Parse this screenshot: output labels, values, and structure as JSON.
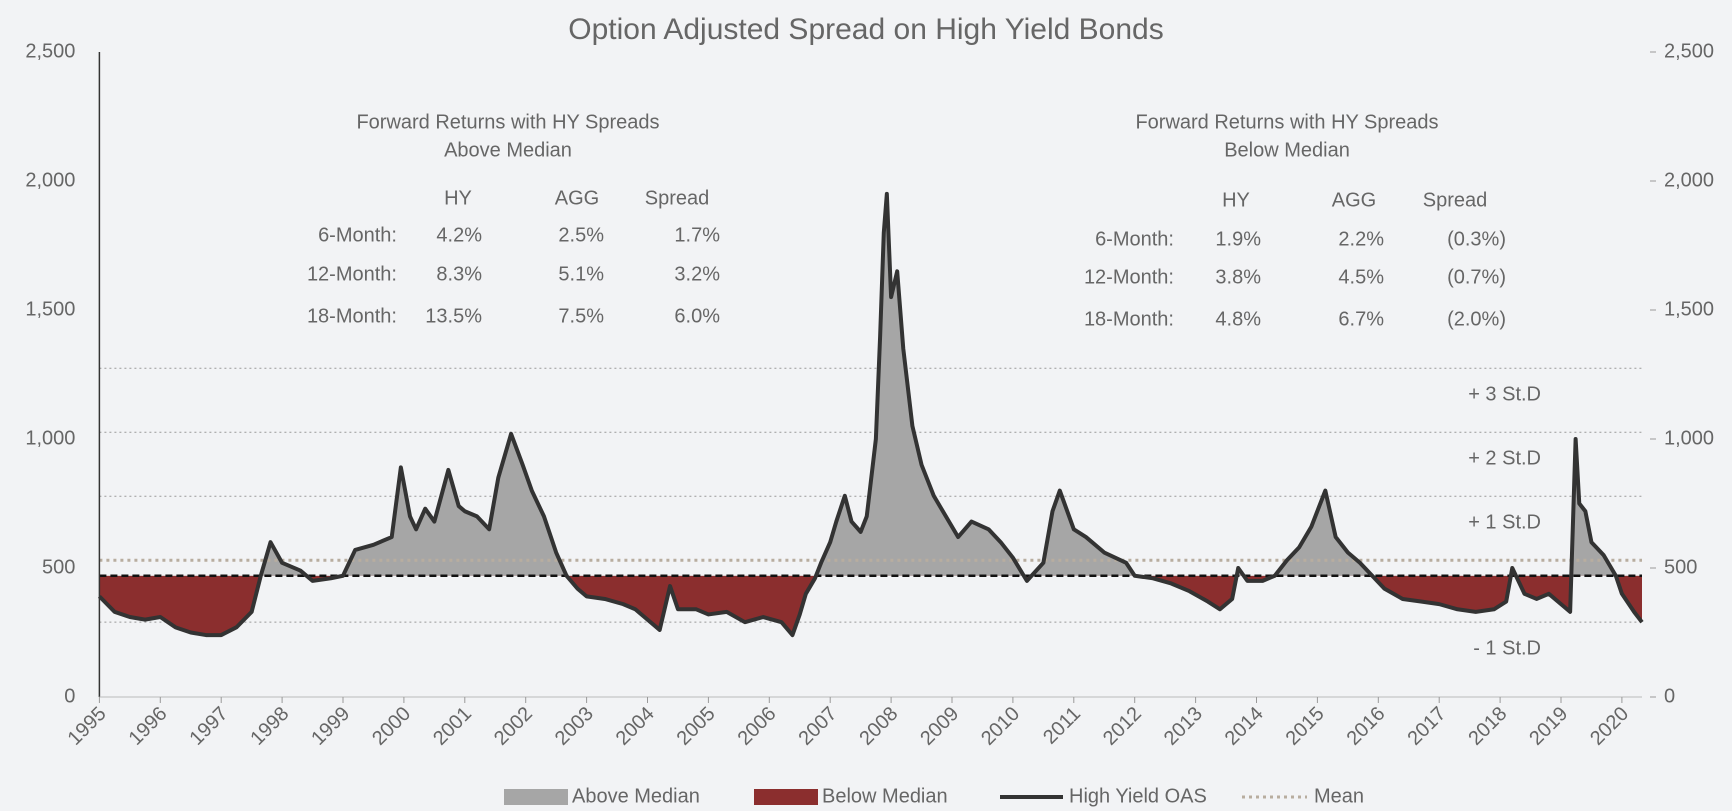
{
  "chart_data": {
    "type": "line",
    "title": "Option Adjusted Spread on High Yield Bonds",
    "x": [
      1995.0,
      1995.25,
      1995.5,
      1995.75,
      1996.0,
      1996.25,
      1996.5,
      1996.75,
      1997.0,
      1997.25,
      1997.5,
      1997.65,
      1997.81,
      1998.0,
      1998.3,
      1998.5,
      1998.8,
      1999.0,
      1999.2,
      1999.5,
      1999.8,
      1999.95,
      2000.1,
      2000.2,
      2000.35,
      2000.5,
      2000.73,
      2000.9,
      2001.0,
      2001.2,
      2001.4,
      2001.55,
      2001.76,
      2001.95,
      2002.1,
      2002.3,
      2002.5,
      2002.67,
      2002.85,
      2003.0,
      2003.3,
      2003.6,
      2003.8,
      2004.0,
      2004.2,
      2004.37,
      2004.5,
      2004.8,
      2005.0,
      2005.3,
      2005.6,
      2005.9,
      2006.2,
      2006.38,
      2006.5,
      2006.6,
      2006.75,
      2006.85,
      2007.0,
      2007.1,
      2007.24,
      2007.35,
      2007.5,
      2007.6,
      2007.75,
      2007.82,
      2007.88,
      2007.93,
      2008.0,
      2008.1,
      2008.2,
      2008.35,
      2008.5,
      2008.7,
      2008.9,
      2009.1,
      2009.32,
      2009.6,
      2009.8,
      2010.0,
      2010.23,
      2010.5,
      2010.65,
      2010.77,
      2011.0,
      2011.2,
      2011.5,
      2011.86,
      2012.0,
      2012.3,
      2012.6,
      2012.9,
      2013.2,
      2013.4,
      2013.6,
      2013.7,
      2013.85,
      2014.1,
      2014.3,
      2014.5,
      2014.7,
      2014.9,
      2015.13,
      2015.3,
      2015.5,
      2015.7,
      2015.9,
      2016.1,
      2016.4,
      2016.7,
      2017.0,
      2017.3,
      2017.6,
      2017.9,
      2018.1,
      2018.2,
      2018.4,
      2018.6,
      2018.8,
      2019.0,
      2019.15,
      2019.24,
      2019.3,
      2019.4,
      2019.5,
      2019.7,
      2019.9,
      2020.0,
      2020.2,
      2020.33
    ],
    "series": [
      {
        "name": "High Yield OAS",
        "color": "#333333",
        "values": [
          390,
          330,
          310,
          300,
          310,
          270,
          250,
          240,
          240,
          270,
          330,
          470,
          600,
          520,
          490,
          450,
          460,
          470,
          570,
          590,
          620,
          890,
          700,
          650,
          730,
          680,
          880,
          740,
          720,
          700,
          650,
          850,
          1020,
          900,
          800,
          700,
          560,
          470,
          420,
          390,
          380,
          360,
          340,
          300,
          260,
          430,
          340,
          340,
          320,
          330,
          290,
          310,
          290,
          240,
          320,
          400,
          460,
          520,
          600,
          680,
          780,
          680,
          640,
          700,
          1000,
          1400,
          1800,
          1950,
          1550,
          1650,
          1350,
          1050,
          900,
          780,
          700,
          620,
          680,
          650,
          600,
          540,
          450,
          520,
          720,
          800,
          650,
          620,
          560,
          520,
          470,
          460,
          440,
          410,
          370,
          340,
          380,
          500,
          450,
          450,
          470,
          530,
          580,
          660,
          800,
          620,
          560,
          520,
          470,
          420,
          380,
          370,
          360,
          340,
          330,
          340,
          370,
          500,
          400,
          380,
          400,
          360,
          330,
          1000,
          750,
          720,
          600,
          550,
          470,
          400,
          330,
          290
        ]
      }
    ],
    "fills": [
      {
        "name": "Above Median",
        "color": "#a6a6a6"
      },
      {
        "name": "Below Median",
        "color": "#8b2e2e"
      }
    ],
    "median": 470,
    "mean": {
      "name": "Mean",
      "value": 530,
      "color": "#b8ad9f"
    },
    "sd_lines": [
      {
        "label": "+ 3 St.D",
        "value": 1274
      },
      {
        "label": "+ 2 St.D",
        "value": 1026
      },
      {
        "label": "+ 1 St.D",
        "value": 778
      },
      {
        "label": "- 1 St.D",
        "value": 290
      }
    ],
    "xlim": [
      1995,
      2020.33
    ],
    "xticks": [
      1995,
      1996,
      1997,
      1998,
      1999,
      2000,
      2001,
      2002,
      2003,
      2004,
      2005,
      2006,
      2007,
      2008,
      2009,
      2010,
      2011,
      2012,
      2013,
      2014,
      2015,
      2016,
      2017,
      2018,
      2019,
      2020
    ],
    "ylim": [
      0,
      2500
    ],
    "yticks": [
      0,
      500,
      {
        "value": 1000,
        "label": "1,000"
      },
      {
        "value": 1500,
        "label": "1,500"
      },
      {
        "value": 2000,
        "label": "2,000"
      },
      {
        "value": 2500,
        "label": "2,500"
      }
    ],
    "y2lim": [
      0,
      2500
    ],
    "y2ticks": [
      0,
      500,
      {
        "value": 1000,
        "label": "1,000"
      },
      {
        "value": 1500,
        "label": "1,500"
      },
      {
        "value": 2000,
        "label": "2,000"
      },
      {
        "value": 2500,
        "label": "2,500"
      }
    ],
    "tables": [
      {
        "title": [
          "Forward Returns with HY Spreads",
          "Above Median"
        ],
        "columns": [
          "HY",
          "AGG",
          "Spread"
        ],
        "rows": [
          {
            "label": "6-Month:",
            "values": [
              "4.2%",
              "2.5%",
              "1.7%"
            ]
          },
          {
            "label": "12-Month:",
            "values": [
              "8.3%",
              "5.1%",
              "3.2%"
            ]
          },
          {
            "label": "18-Month:",
            "values": [
              "13.5%",
              "7.5%",
              "6.0%"
            ]
          }
        ]
      },
      {
        "title": [
          "Forward Returns with HY Spreads",
          "Below Median"
        ],
        "columns": [
          "HY",
          "AGG",
          "Spread"
        ],
        "rows": [
          {
            "label": "6-Month:",
            "values": [
              "1.9%",
              "2.2%",
              "(0.3%)"
            ]
          },
          {
            "label": "12-Month:",
            "values": [
              "3.8%",
              "4.5%",
              "(0.7%)"
            ]
          },
          {
            "label": "18-Month:",
            "values": [
              "4.8%",
              "6.7%",
              "(2.0%)"
            ]
          }
        ]
      }
    ]
  }
}
